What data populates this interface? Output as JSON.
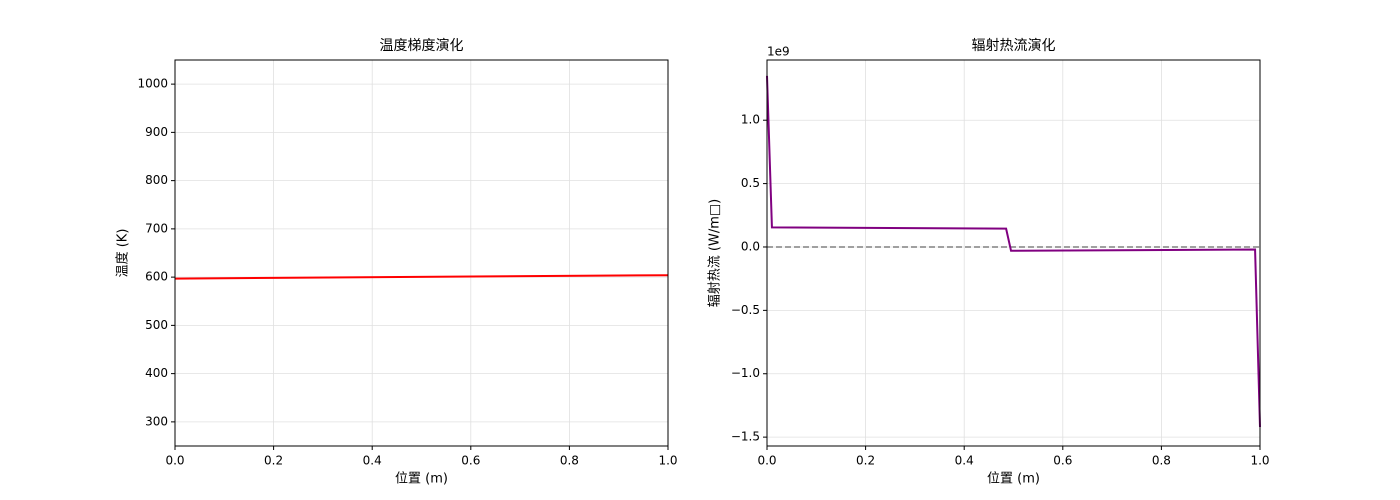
{
  "chart_data": [
    {
      "type": "line",
      "title": "温度梯度演化",
      "xlabel": "位置 (m)",
      "ylabel": "温度 (K)",
      "x": [
        0,
        1
      ],
      "series": [
        {
          "color": "#ff0000",
          "values": [
            597,
            604
          ]
        }
      ],
      "xlim": [
        0,
        1
      ],
      "xticks": [
        {
          "value": 0,
          "label": "0.0"
        },
        0.2,
        0.4,
        0.6,
        0.8,
        {
          "value": 1,
          "label": "1.0"
        }
      ],
      "ylim": [
        250,
        1050
      ],
      "yticks": [
        300,
        400,
        500,
        600,
        700,
        800,
        900,
        1000
      ],
      "grid": true
    },
    {
      "type": "line",
      "title": "辐射热流演化",
      "xlabel": "位置 (m)",
      "ylabel": "辐射热流 (W/m□)",
      "offset_label": "1e9",
      "x": [
        0,
        0.01,
        0.485,
        0.495,
        0.99,
        1
      ],
      "series": [
        {
          "color": "#800080",
          "values": [
            1.35,
            0.155,
            0.145,
            -0.03,
            -0.02,
            -1.42
          ]
        }
      ],
      "hline": 0,
      "hline_color": "#808080",
      "xlim": [
        0,
        1
      ],
      "xticks": [
        {
          "value": 0,
          "label": "0.0"
        },
        0.2,
        0.4,
        0.6,
        0.8,
        {
          "value": 1,
          "label": "1.0"
        }
      ],
      "ylim": [
        -1.57,
        1.475
      ],
      "yticks": [
        {
          "value": -1.5,
          "label": "−1.5"
        },
        {
          "value": -1,
          "label": "−1.0"
        },
        {
          "value": -0.5,
          "label": "−0.5"
        },
        {
          "value": 0,
          "label": "0.0"
        },
        0.5,
        {
          "value": 1,
          "label": "1.0"
        }
      ],
      "grid": true
    }
  ]
}
